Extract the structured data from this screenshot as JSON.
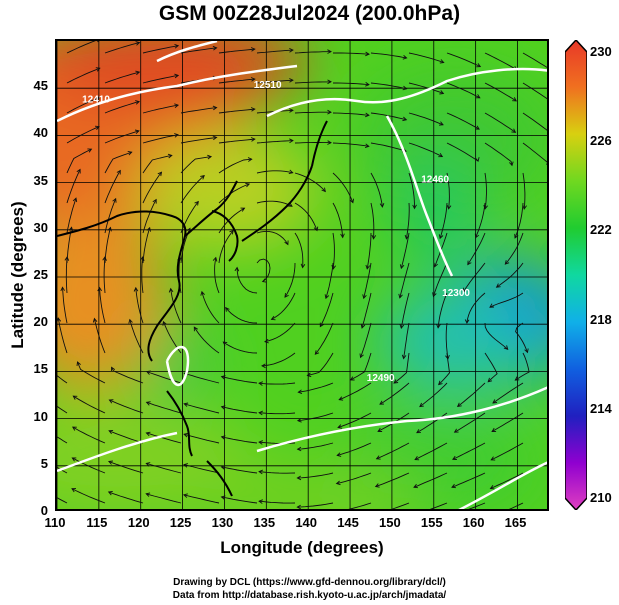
{
  "title": "GSM 00Z28Jul2024 (200.0hPa)",
  "x_axis": {
    "label": "Longitude (degrees)",
    "range": [
      110,
      169
    ],
    "ticks": [
      "110",
      "115",
      "120",
      "125",
      "130",
      "135",
      "140",
      "145",
      "150",
      "155",
      "160",
      "165"
    ]
  },
  "y_axis": {
    "label": "Latitude  (degrees)",
    "range": [
      0,
      50
    ],
    "ticks": [
      "0",
      "5",
      "10",
      "15",
      "20",
      "25",
      "30",
      "35",
      "40",
      "45"
    ]
  },
  "colorbar": {
    "range": [
      210,
      230
    ],
    "labels": [
      "230",
      "226",
      "222",
      "218",
      "214",
      "210"
    ],
    "stops": [
      {
        "value": 210,
        "color": "#e040c0"
      },
      {
        "value": 212,
        "color": "#9000d0"
      },
      {
        "value": 214,
        "color": "#2020c0"
      },
      {
        "value": 216,
        "color": "#1060e0"
      },
      {
        "value": 218,
        "color": "#10b0e8"
      },
      {
        "value": 220,
        "color": "#10d8a0"
      },
      {
        "value": 222,
        "color": "#20cc30"
      },
      {
        "value": 224,
        "color": "#70d820"
      },
      {
        "value": 226,
        "color": "#d8d010"
      },
      {
        "value": 228,
        "color": "#f07020"
      },
      {
        "value": 230,
        "color": "#e83828"
      }
    ]
  },
  "contour_labels": [
    {
      "text": "12410",
      "lon": 113,
      "lat": 43.5
    },
    {
      "text": "12510",
      "lon": 133.5,
      "lat": 45
    },
    {
      "text": "12460",
      "lon": 153.5,
      "lat": 35
    },
    {
      "text": "12300",
      "lon": 156,
      "lat": 23
    },
    {
      "text": "12490",
      "lon": 147,
      "lat": 14
    }
  ],
  "credits": {
    "line1": "Drawing by DCL (https://www.gfd-dennou.org/library/dcl/)",
    "line2": "Data from http://database.rish.kyoto-u.ac.jp/arch/jmadata/"
  }
}
